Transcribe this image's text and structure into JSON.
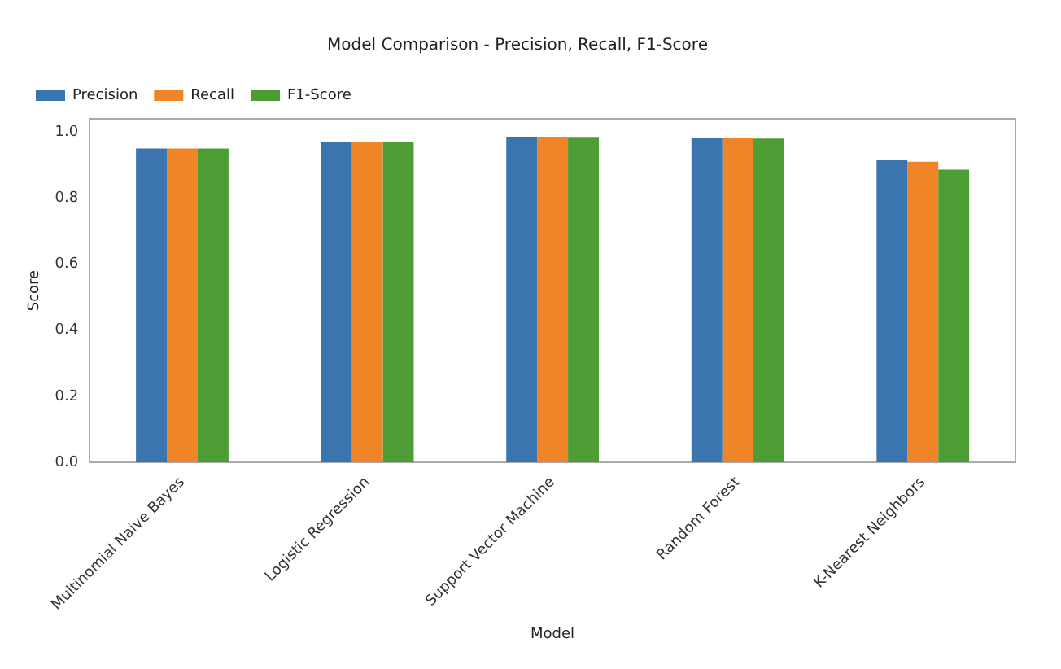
{
  "chart_data": {
    "type": "bar",
    "title": "Model Comparison - Precision, Recall, F1-Score",
    "xlabel": "Model",
    "ylabel": "Score",
    "categories": [
      "Multinomial Naive Bayes",
      "Logistic Regression",
      "Support Vector Machine",
      "Random Forest",
      "K-Nearest Neighbors"
    ],
    "series": [
      {
        "name": "Precision",
        "color": "#3a75b0",
        "values": [
          0.95,
          0.969,
          0.986,
          0.982,
          0.917
        ]
      },
      {
        "name": "Recall",
        "color": "#ef8527",
        "values": [
          0.95,
          0.969,
          0.986,
          0.982,
          0.91
        ]
      },
      {
        "name": "F1-Score",
        "color": "#4c9d34",
        "values": [
          0.95,
          0.969,
          0.985,
          0.98,
          0.886
        ]
      }
    ],
    "ylim": [
      0,
      1.04
    ],
    "yticks": [
      {
        "value": 0,
        "label": "0.0"
      },
      0.2,
      0.4,
      0.6,
      0.8,
      {
        "value": 1,
        "label": "1.0"
      }
    ],
    "grid": false,
    "legend": "top left"
  }
}
